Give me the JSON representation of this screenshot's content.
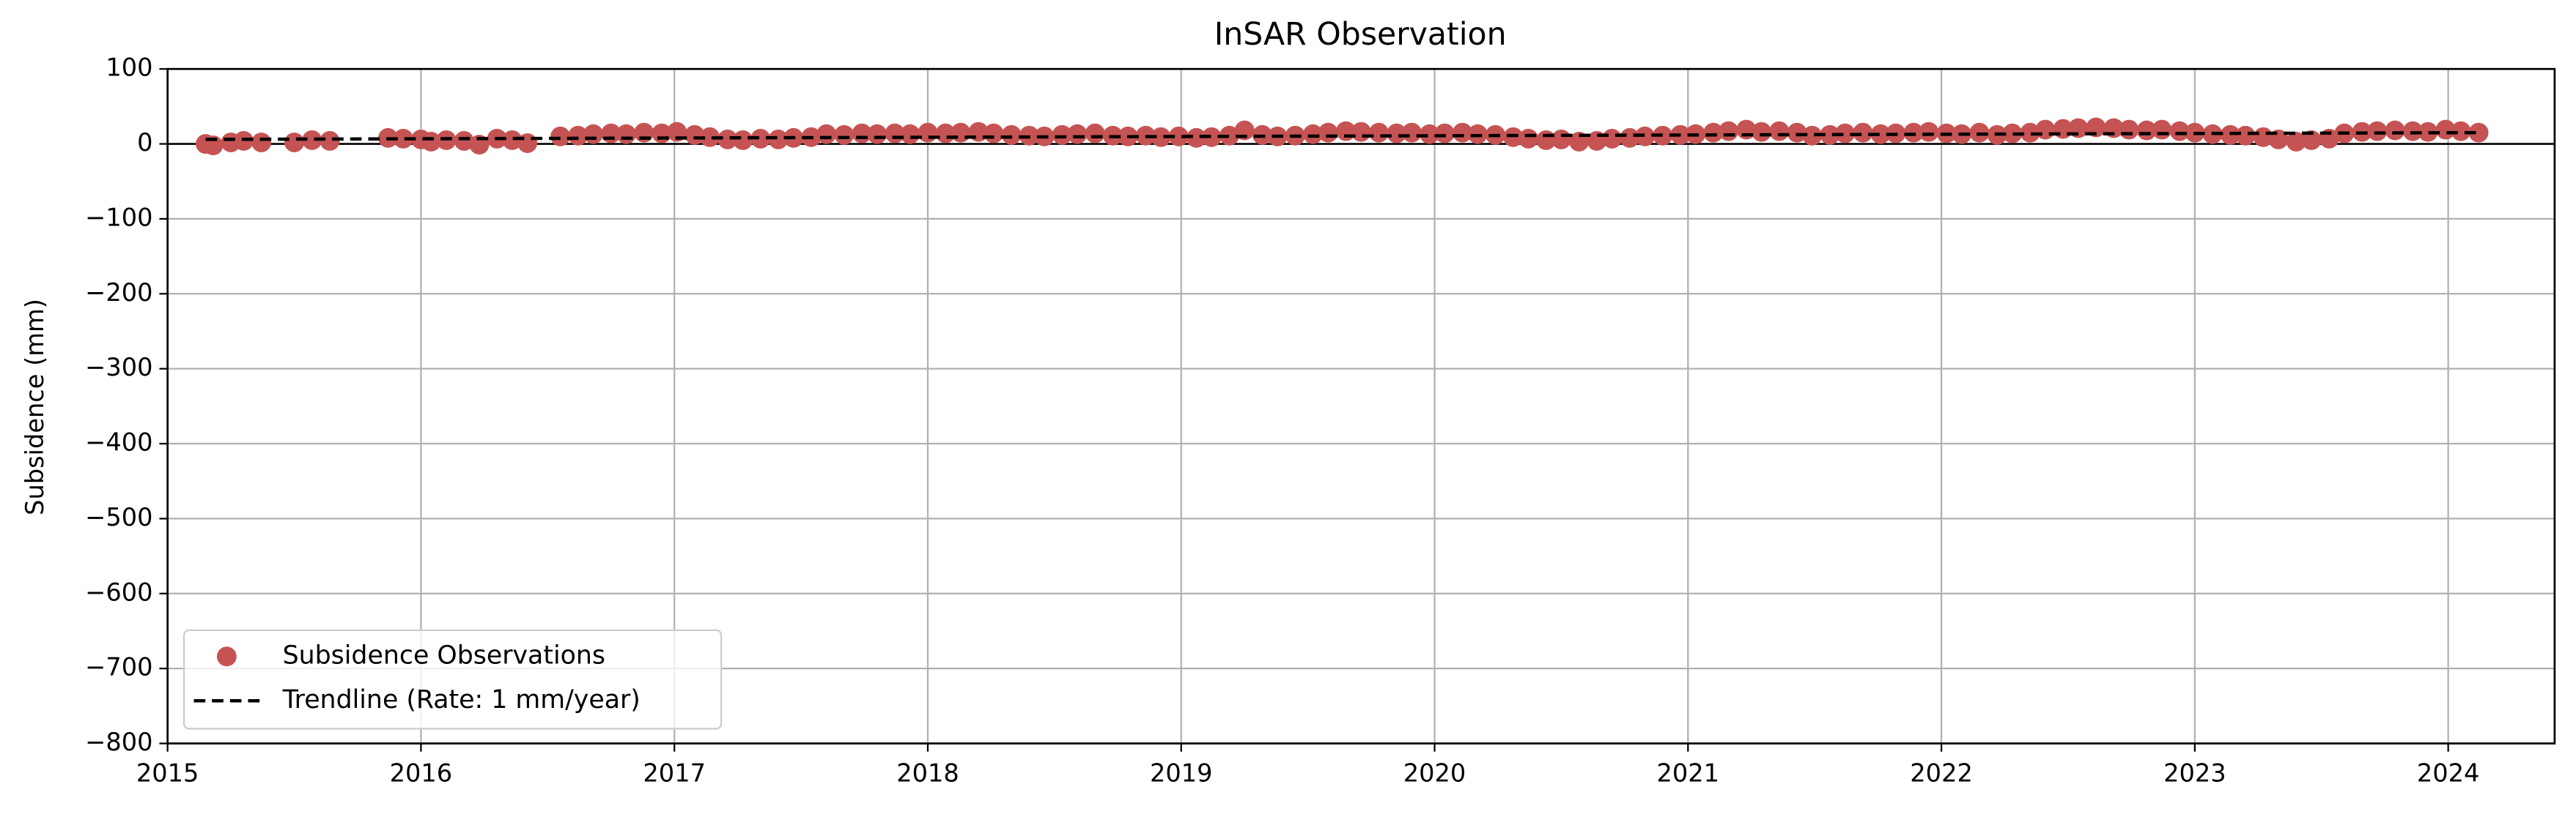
{
  "chart_data": {
    "type": "scatter",
    "title": "InSAR Observation",
    "y_label": "Subsidence (mm)",
    "xlim": [
      2015,
      2024.42
    ],
    "ylim": [
      -800,
      100
    ],
    "xticks": [
      2015,
      2016,
      2017,
      2018,
      2019,
      2020,
      2021,
      2022,
      2023,
      2024
    ],
    "yticks": [
      100,
      0,
      {
        "value": -100,
        "label": "−100"
      },
      {
        "value": -200,
        "label": "−200"
      },
      {
        "value": -300,
        "label": "−300"
      },
      {
        "value": -400,
        "label": "−400"
      },
      {
        "value": -500,
        "label": "−500"
      },
      {
        "value": -600,
        "label": "−600"
      },
      {
        "value": -700,
        "label": "−700"
      },
      {
        "value": -800,
        "label": "−800"
      }
    ],
    "grid": true,
    "reference_line": 0,
    "legend": "lower left",
    "series": [
      {
        "name": "Subsidence Observations",
        "color": "#c65353",
        "x": [
          2015.15,
          2015.18,
          2015.25,
          2015.3,
          2015.37,
          2015.5,
          2015.57,
          2015.64,
          2015.87,
          2015.93,
          2016.0,
          2016.04,
          2016.1,
          2016.17,
          2016.23,
          2016.3,
          2016.36,
          2016.42,
          2016.55,
          2016.62,
          2016.68,
          2016.75,
          2016.81,
          2016.88,
          2016.95,
          2017.01,
          2017.08,
          2017.14,
          2017.21,
          2017.27,
          2017.34,
          2017.41,
          2017.47,
          2017.54,
          2017.6,
          2017.67,
          2017.74,
          2017.8,
          2017.87,
          2017.93,
          2018.0,
          2018.07,
          2018.13,
          2018.2,
          2018.26,
          2018.33,
          2018.4,
          2018.46,
          2018.53,
          2018.59,
          2018.66,
          2018.73,
          2018.79,
          2018.86,
          2018.92,
          2018.99,
          2019.06,
          2019.12,
          2019.19,
          2019.25,
          2019.32,
          2019.38,
          2019.45,
          2019.52,
          2019.58,
          2019.65,
          2019.71,
          2019.78,
          2019.85,
          2019.91,
          2019.98,
          2020.04,
          2020.11,
          2020.17,
          2020.24,
          2020.31,
          2020.37,
          2020.44,
          2020.5,
          2020.57,
          2020.64,
          2020.7,
          2020.77,
          2020.83,
          2020.9,
          2020.97,
          2021.03,
          2021.1,
          2021.16,
          2021.23,
          2021.29,
          2021.36,
          2021.43,
          2021.49,
          2021.56,
          2021.62,
          2021.69,
          2021.76,
          2021.82,
          2021.89,
          2021.95,
          2022.02,
          2022.08,
          2022.15,
          2022.22,
          2022.28,
          2022.35,
          2022.41,
          2022.48,
          2022.54,
          2022.61,
          2022.68,
          2022.74,
          2022.81,
          2022.87,
          2022.94,
          2023.0,
          2023.07,
          2023.14,
          2023.2,
          2023.27,
          2023.33,
          2023.4,
          2023.46,
          2023.53,
          2023.59,
          2023.66,
          2023.72,
          2023.79,
          2023.86,
          2023.92,
          2023.99,
          2024.05,
          2024.12
        ],
        "values": [
          0,
          -2,
          2,
          4,
          2,
          2,
          5,
          4,
          8,
          7,
          6,
          3,
          5,
          4,
          -1,
          7,
          5,
          1,
          10,
          11,
          13,
          14,
          13,
          15,
          14,
          16,
          12,
          9,
          6,
          5,
          7,
          6,
          8,
          9,
          13,
          12,
          14,
          13,
          14,
          13,
          15,
          14,
          15,
          16,
          14,
          12,
          11,
          10,
          12,
          13,
          14,
          11,
          10,
          11,
          9,
          10,
          8,
          9,
          11,
          18,
          12,
          10,
          11,
          13,
          15,
          17,
          16,
          15,
          14,
          15,
          13,
          14,
          15,
          13,
          12,
          9,
          7,
          5,
          6,
          3,
          4,
          7,
          8,
          10,
          11,
          12,
          13,
          15,
          17,
          19,
          16,
          17,
          15,
          11,
          12,
          14,
          15,
          13,
          14,
          15,
          16,
          14,
          13,
          15,
          12,
          14,
          15,
          19,
          20,
          21,
          22,
          21,
          19,
          18,
          19,
          17,
          15,
          13,
          12,
          11,
          9,
          6,
          3,
          5,
          7,
          14,
          16,
          17,
          18,
          17,
          16,
          19,
          17,
          15
        ]
      },
      {
        "name": "Trendline (Rate: 1 mm/year)",
        "color": "#000000",
        "line_style": "dashed",
        "x": [
          2015.15,
          2024.12
        ],
        "values": [
          6,
          15
        ]
      }
    ]
  }
}
